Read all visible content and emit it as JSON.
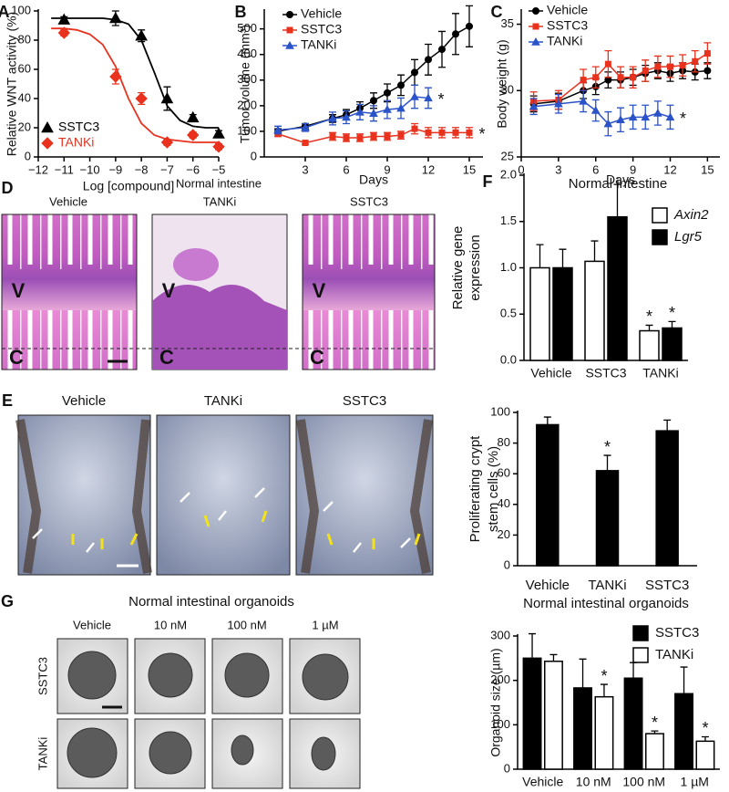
{
  "image_panels": [
    {
      "panel": "D",
      "title": "Normal intestine",
      "columns": [
        "Vehicle",
        "TANKi",
        "SSTC3"
      ],
      "region_labels": [
        "V",
        "C"
      ]
    },
    {
      "panel": "E",
      "columns": [
        "Vehicle",
        "TANKi",
        "SSTC3"
      ]
    },
    {
      "panel": "G",
      "title": "Normal intestinal organoids",
      "columns": [
        "Vehicle",
        "10 nM",
        "100 nM",
        "1 µM"
      ],
      "rows": [
        "SSTC3",
        "TANKi"
      ]
    }
  ],
  "chart_data": [
    {
      "type": "scatter",
      "panel": "A",
      "xlabel": "Log [compound]",
      "ylabel": "Relative WNT activity (%)",
      "xlim": [
        -12,
        -5
      ],
      "xticks": [
        {
          "value": -12,
          "label": "−12"
        },
        {
          "value": -11,
          "label": "−11"
        },
        {
          "value": -10,
          "label": "−10"
        },
        {
          "value": -9,
          "label": "−9"
        },
        {
          "value": -8,
          "label": "−8"
        },
        {
          "value": -7,
          "label": "−7"
        },
        {
          "value": -6,
          "label": "−6"
        },
        {
          "value": -5,
          "label": "−5"
        }
      ],
      "ylim": [
        0,
        100
      ],
      "yticks": [
        0,
        20,
        40,
        60,
        80,
        100
      ],
      "legend": "lower left",
      "legend_colored_text": true,
      "series": [
        {
          "name": "SSTC3",
          "color": "#000000",
          "marker": "triangle",
          "x": [
            -11,
            -9,
            -8,
            -7,
            -6,
            -5
          ],
          "values": [
            94,
            95,
            83,
            40,
            27,
            16
          ],
          "errors": [
            2,
            5,
            4,
            8,
            2,
            2
          ],
          "fit": {
            "x": [
              -11.5,
              -11,
              -10.5,
              -10,
              -9.5,
              -9,
              -8.5,
              -8,
              -7.5,
              -7,
              -6.5,
              -6,
              -5.5,
              -5
            ],
            "values": [
              95,
              95,
              95,
              95,
              95,
              94,
              91,
              80,
              58,
              35,
              25,
              21,
              20,
              20
            ]
          }
        },
        {
          "name": "TANKi",
          "color": "#e8321e",
          "marker": "diamond",
          "x": [
            -11,
            -9,
            -8,
            -7,
            -6,
            -5
          ],
          "values": [
            85,
            55,
            40,
            10,
            15,
            7
          ],
          "errors": [
            2,
            5,
            4,
            2,
            2,
            2
          ],
          "fit": {
            "x": [
              -11.5,
              -11,
              -10.5,
              -10,
              -9.5,
              -9,
              -8.5,
              -8,
              -7.5,
              -7,
              -6.5,
              -6,
              -5.5,
              -5
            ],
            "values": [
              88,
              88,
              87,
              84,
              77,
              62,
              40,
              23,
              15,
              12,
              11,
              10,
              10,
              10
            ]
          }
        }
      ]
    },
    {
      "type": "line",
      "panel": "B",
      "xlabel": "Days",
      "ylabel": "Tumor volume (mm³)",
      "xlim": [
        0,
        16
      ],
      "xticks": [
        3,
        6,
        9,
        12,
        15
      ],
      "ylim": [
        0,
        570
      ],
      "yticks": [
        0,
        100,
        200,
        300,
        400,
        500
      ],
      "legend": "upper left",
      "series": [
        {
          "name": "Vehicle",
          "color": "#000000",
          "marker": "circle",
          "x": [
            1,
            3,
            5,
            6,
            7,
            8,
            9,
            10,
            11,
            12,
            13,
            14,
            15
          ],
          "values": [
            100,
            120,
            150,
            165,
            190,
            220,
            250,
            280,
            330,
            380,
            420,
            480,
            510
          ],
          "errors": [
            10,
            10,
            15,
            20,
            25,
            30,
            35,
            40,
            50,
            60,
            70,
            80,
            80
          ]
        },
        {
          "name": "SSTC3",
          "color": "#e8321e",
          "marker": "square",
          "x": [
            1,
            3,
            5,
            6,
            7,
            8,
            9,
            10,
            11,
            12,
            13,
            14,
            15
          ],
          "values": [
            90,
            55,
            80,
            75,
            75,
            80,
            80,
            85,
            110,
            95,
            95,
            95,
            95
          ],
          "errors": [
            10,
            5,
            15,
            15,
            15,
            15,
            15,
            15,
            20,
            20,
            20,
            20,
            20
          ],
          "significance": [
            null,
            null,
            null,
            null,
            null,
            null,
            null,
            null,
            null,
            null,
            null,
            null,
            "*"
          ]
        },
        {
          "name": "TANKi",
          "color": "#2a52c9",
          "marker": "triangle",
          "x": [
            1,
            3,
            5,
            6,
            7,
            8,
            9,
            10,
            11,
            12
          ],
          "values": [
            105,
            115,
            150,
            155,
            175,
            170,
            185,
            190,
            235,
            230
          ],
          "errors": [
            15,
            15,
            25,
            25,
            30,
            30,
            35,
            40,
            45,
            40
          ],
          "significance": [
            null,
            null,
            null,
            null,
            null,
            null,
            null,
            null,
            null,
            "*"
          ]
        }
      ]
    },
    {
      "type": "line",
      "panel": "C",
      "xlabel": "Days",
      "ylabel": "Body weight (g)",
      "xlim": [
        0,
        16
      ],
      "xticks": [
        0,
        3,
        6,
        9,
        12,
        15
      ],
      "ylim": [
        25,
        36
      ],
      "yticks": [
        25,
        30,
        35
      ],
      "legend": "upper left",
      "series": [
        {
          "name": "Vehicle",
          "color": "#000000",
          "marker": "circle",
          "x": [
            1,
            3,
            5,
            6,
            7,
            8,
            9,
            10,
            11,
            12,
            13,
            14,
            15
          ],
          "values": [
            29,
            29.2,
            30,
            30.3,
            30.8,
            30.8,
            31,
            31.3,
            31.5,
            31.3,
            31.5,
            31.4,
            31.5
          ],
          "errors": [
            0.6,
            0.6,
            0.6,
            0.6,
            0.6,
            0.6,
            0.6,
            0.6,
            0.6,
            0.6,
            0.6,
            0.6,
            0.6
          ]
        },
        {
          "name": "SSTC3",
          "color": "#e8321e",
          "marker": "square",
          "x": [
            1,
            3,
            5,
            6,
            7,
            8,
            9,
            10,
            11,
            12,
            13,
            14,
            15
          ],
          "values": [
            29.2,
            29.3,
            30.8,
            31,
            32,
            31,
            31,
            31.5,
            31.8,
            31.8,
            31.9,
            32.2,
            32.8
          ],
          "errors": [
            0.7,
            0.7,
            0.8,
            0.8,
            1,
            0.8,
            0.8,
            0.8,
            0.8,
            0.8,
            0.8,
            0.8,
            0.8
          ]
        },
        {
          "name": "TANKi",
          "color": "#2a52c9",
          "marker": "triangle",
          "x": [
            1,
            3,
            5,
            6,
            7,
            8,
            9,
            10,
            11,
            12
          ],
          "values": [
            28.8,
            29,
            29.2,
            28.5,
            27.5,
            27.8,
            28,
            28,
            28.3,
            28
          ],
          "errors": [
            0.6,
            0.7,
            0.8,
            0.8,
            0.9,
            0.9,
            0.9,
            0.9,
            0.9,
            0.9
          ],
          "significance": [
            null,
            null,
            null,
            null,
            null,
            null,
            null,
            null,
            null,
            "*"
          ]
        }
      ]
    },
    {
      "type": "bar",
      "panel": "F",
      "title": "Normal intestine",
      "ylabel": [
        "Relative gene",
        "expression"
      ],
      "categories": [
        "Vehicle",
        "SSTC3",
        "TANKi"
      ],
      "ylim": [
        0,
        2
      ],
      "yticks": [
        {
          "value": 0,
          "label": "0.0"
        },
        0.5,
        {
          "value": 1,
          "label": "1.0"
        },
        1.5,
        {
          "value": 2,
          "label": "2.0"
        }
      ],
      "legend": "upper right",
      "legend_italic": true,
      "series": [
        {
          "name": "Axin2",
          "color": "#ffffff",
          "values": [
            1.0,
            1.07,
            0.32
          ],
          "errors": [
            0.25,
            0.22,
            0.06
          ],
          "significance": [
            null,
            null,
            "*"
          ]
        },
        {
          "name": "Lgr5",
          "color": "#000000",
          "values": [
            1.0,
            1.55,
            0.35
          ],
          "errors": [
            0.2,
            0.35,
            0.07
          ],
          "significance": [
            null,
            null,
            "*"
          ]
        }
      ]
    },
    {
      "type": "bar",
      "ylabel": [
        "Proliferating crypt",
        "stem cells (%)"
      ],
      "categories": [
        "Vehicle",
        "TANKi",
        "SSTC3"
      ],
      "ylim": [
        0,
        100
      ],
      "yticks": [
        0,
        20,
        40,
        60,
        80,
        100
      ],
      "color": "#000000",
      "values": [
        92,
        62,
        88
      ],
      "errors": [
        5,
        10,
        7
      ],
      "significance": [
        null,
        "*",
        null
      ]
    },
    {
      "type": "bar",
      "title": "Normal intestinal organoids",
      "ylabel": "Organoid size (µm)",
      "categories": [
        "Vehicle",
        "10 nM",
        "100 nM",
        "1 µM"
      ],
      "ylim": [
        0,
        300
      ],
      "yticks": [
        0,
        100,
        200,
        300
      ],
      "legend": "upper right",
      "series": [
        {
          "name": "SSTC3",
          "color": "#000000",
          "values": [
            250,
            183,
            205,
            170
          ],
          "errors": [
            55,
            65,
            35,
            60
          ]
        },
        {
          "name": "TANKi",
          "color": "#ffffff",
          "values": [
            243,
            163,
            80,
            63
          ],
          "errors": [
            15,
            28,
            6,
            10
          ],
          "significance": [
            null,
            "*",
            "*",
            "*"
          ]
        }
      ]
    }
  ]
}
